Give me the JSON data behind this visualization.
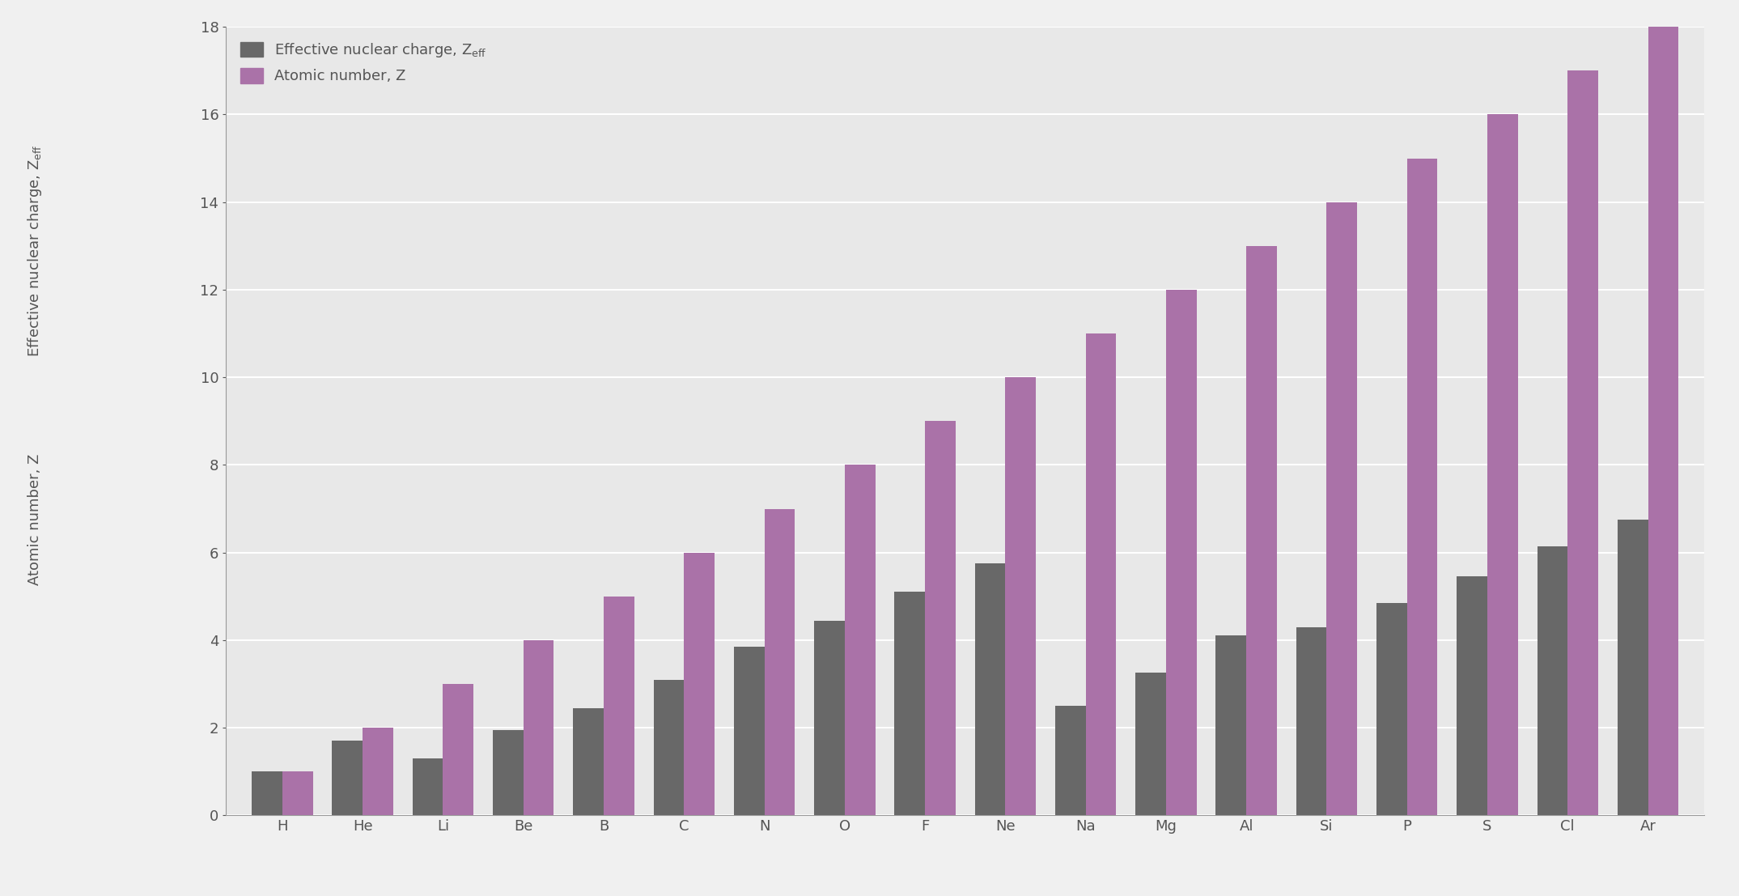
{
  "elements": [
    "H",
    "He",
    "Li",
    "Be",
    "B",
    "C",
    "N",
    "O",
    "F",
    "Ne",
    "Na",
    "Mg",
    "Al",
    "Si",
    "P",
    "S",
    "Cl",
    "Ar"
  ],
  "atomic_numbers": [
    1,
    2,
    3,
    4,
    5,
    6,
    7,
    8,
    9,
    10,
    11,
    12,
    13,
    14,
    15,
    16,
    17,
    18
  ],
  "zeff_values": [
    1.0,
    1.7,
    1.3,
    1.95,
    2.45,
    3.1,
    3.85,
    4.45,
    5.1,
    5.75,
    2.5,
    3.25,
    4.1,
    4.3,
    4.85,
    5.45,
    6.15,
    6.75
  ],
  "bar_color_zeff": "#686868",
  "bar_color_z": "#aa72a8",
  "ylim": [
    0,
    18
  ],
  "yticks": [
    0,
    2,
    4,
    6,
    8,
    10,
    12,
    14,
    16,
    18
  ],
  "background_color": "#e8e8e8",
  "figure_background": "#f0f0f0",
  "legend_label_zeff": "Effective nuclear charge, Z",
  "legend_label_z": "Atomic number, Z",
  "ylabel1": "Effective nuclear charge, Z",
  "ylabel2": "Atomic number, Z",
  "bar_width": 0.38,
  "tick_fontsize": 13,
  "legend_fontsize": 13,
  "ylabel_fontsize": 13
}
